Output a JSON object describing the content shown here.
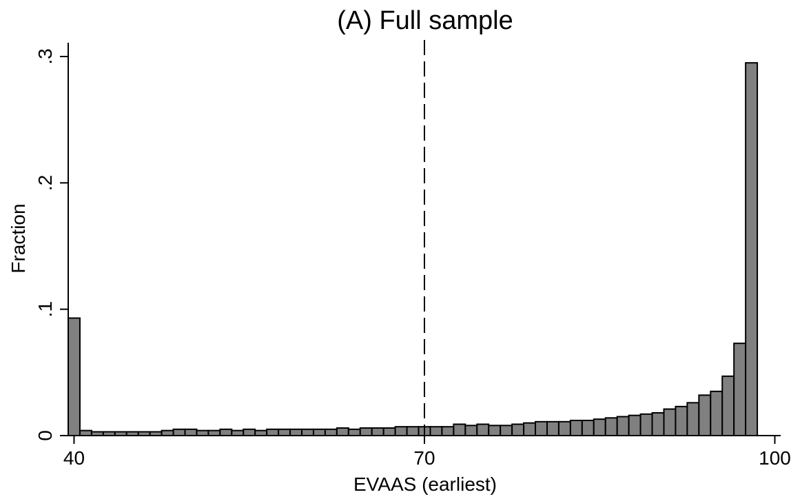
{
  "chart_data": {
    "type": "bar",
    "title": "(A) Full sample",
    "xlabel": "EVAAS (earliest)",
    "ylabel": "Fraction",
    "xlim": [
      39.5,
      100.5
    ],
    "ylim": [
      0,
      0.3
    ],
    "x_ticks": [
      {
        "value": 40,
        "label": "40"
      },
      {
        "value": 70,
        "label": "70"
      },
      {
        "value": 100,
        "label": "100"
      }
    ],
    "y_ticks": [
      {
        "value": 0,
        "label": "0"
      },
      {
        "value": 0.1,
        "label": ".1"
      },
      {
        "value": 0.2,
        "label": ".2"
      },
      {
        "value": 0.3,
        "label": ".3"
      }
    ],
    "reference_line": {
      "x": 70,
      "style": "dashed"
    },
    "bar_color": "#808080",
    "bar_edge_color": "#000000",
    "bin_width": 1,
    "x": [
      40,
      41,
      42,
      43,
      44,
      45,
      46,
      47,
      48,
      49,
      50,
      51,
      52,
      53,
      54,
      55,
      56,
      57,
      58,
      59,
      60,
      61,
      62,
      63,
      64,
      65,
      66,
      67,
      68,
      69,
      70,
      71,
      72,
      73,
      74,
      75,
      76,
      77,
      78,
      79,
      80,
      81,
      82,
      83,
      84,
      85,
      86,
      87,
      88,
      89,
      90,
      91,
      92,
      93,
      94,
      95,
      96,
      97,
      98,
      99
    ],
    "values": [
      0.093,
      0.004,
      0.003,
      0.003,
      0.003,
      0.003,
      0.003,
      0.003,
      0.004,
      0.005,
      0.005,
      0.004,
      0.004,
      0.005,
      0.004,
      0.005,
      0.004,
      0.005,
      0.005,
      0.005,
      0.005,
      0.005,
      0.005,
      0.006,
      0.005,
      0.006,
      0.006,
      0.006,
      0.007,
      0.007,
      0.007,
      0.007,
      0.007,
      0.009,
      0.008,
      0.009,
      0.008,
      0.008,
      0.009,
      0.01,
      0.011,
      0.011,
      0.011,
      0.012,
      0.012,
      0.013,
      0.014,
      0.015,
      0.016,
      0.017,
      0.018,
      0.021,
      0.023,
      0.026,
      0.032,
      0.035,
      0.047,
      0.073,
      0.295,
      0.0
    ]
  }
}
